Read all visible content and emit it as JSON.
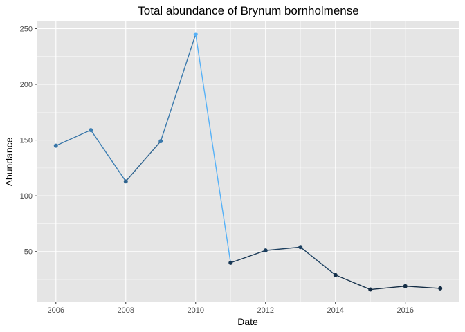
{
  "chart_data": {
    "type": "line",
    "title": "Total abundance of Brynum bornholmense",
    "xlabel": "Date",
    "ylabel": "Abundance",
    "x": [
      2006,
      2007,
      2008,
      2009,
      2010,
      2011,
      2012,
      2013,
      2014,
      2015,
      2016,
      2017
    ],
    "values": [
      145,
      159,
      113,
      149,
      245,
      40,
      51,
      54,
      29,
      16,
      19,
      17
    ],
    "xticks": [
      "2006",
      "2008",
      "2010",
      "2012",
      "2014",
      "2016"
    ],
    "yticks": [
      "50",
      "100",
      "150",
      "200",
      "250"
    ],
    "xlim": [
      2005.45,
      2017.55
    ],
    "ylim": [
      4.55,
      256.45
    ],
    "grid": true,
    "colors": {
      "panel_background": "#e5e5e5",
      "grid_major": "#ffffff",
      "line_scale_low": "#132b43",
      "line_scale_high": "#56b1f7"
    }
  }
}
